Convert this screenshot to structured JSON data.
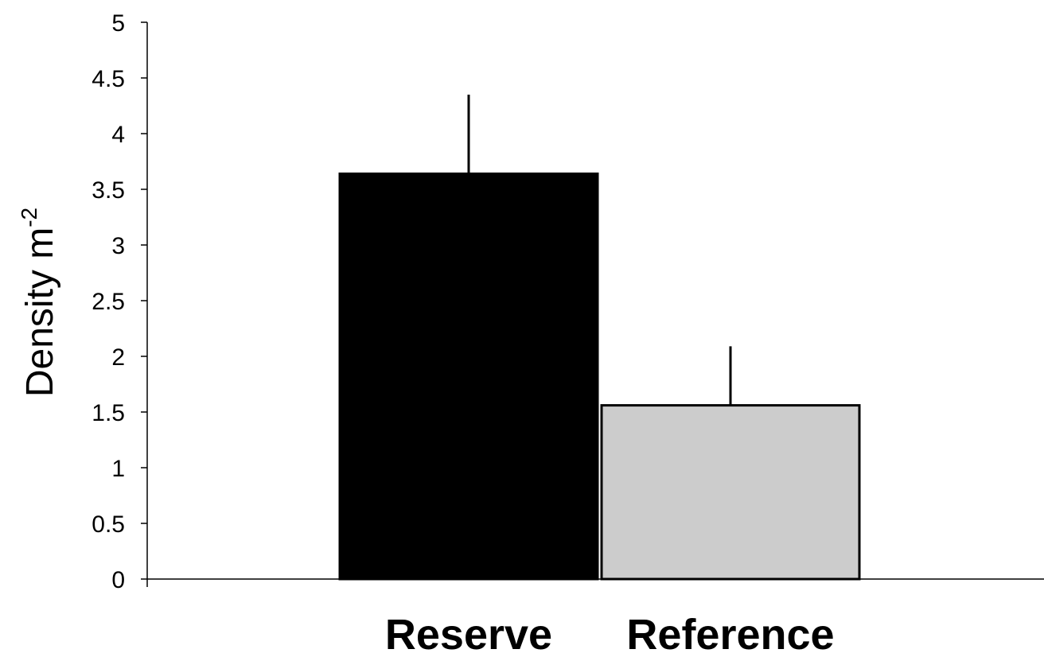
{
  "chart_data": {
    "type": "bar",
    "title": "",
    "xlabel": "",
    "ylabel": {
      "text": "Density m",
      "superscript": "-2"
    },
    "categories": [
      "Reserve",
      "Reference"
    ],
    "values": [
      3.64,
      1.56
    ],
    "error_upper": [
      4.35,
      2.09
    ],
    "ylim": [
      0,
      5
    ],
    "yticks": [
      "0",
      "0.5",
      "1",
      "1.5",
      "2",
      "2.5",
      "3",
      "3.5",
      "4",
      "4.5",
      "5"
    ],
    "bar_colors": [
      "#000000",
      "#cccccc"
    ],
    "bar_outline": "#000000",
    "grid": false,
    "legend": "none"
  }
}
